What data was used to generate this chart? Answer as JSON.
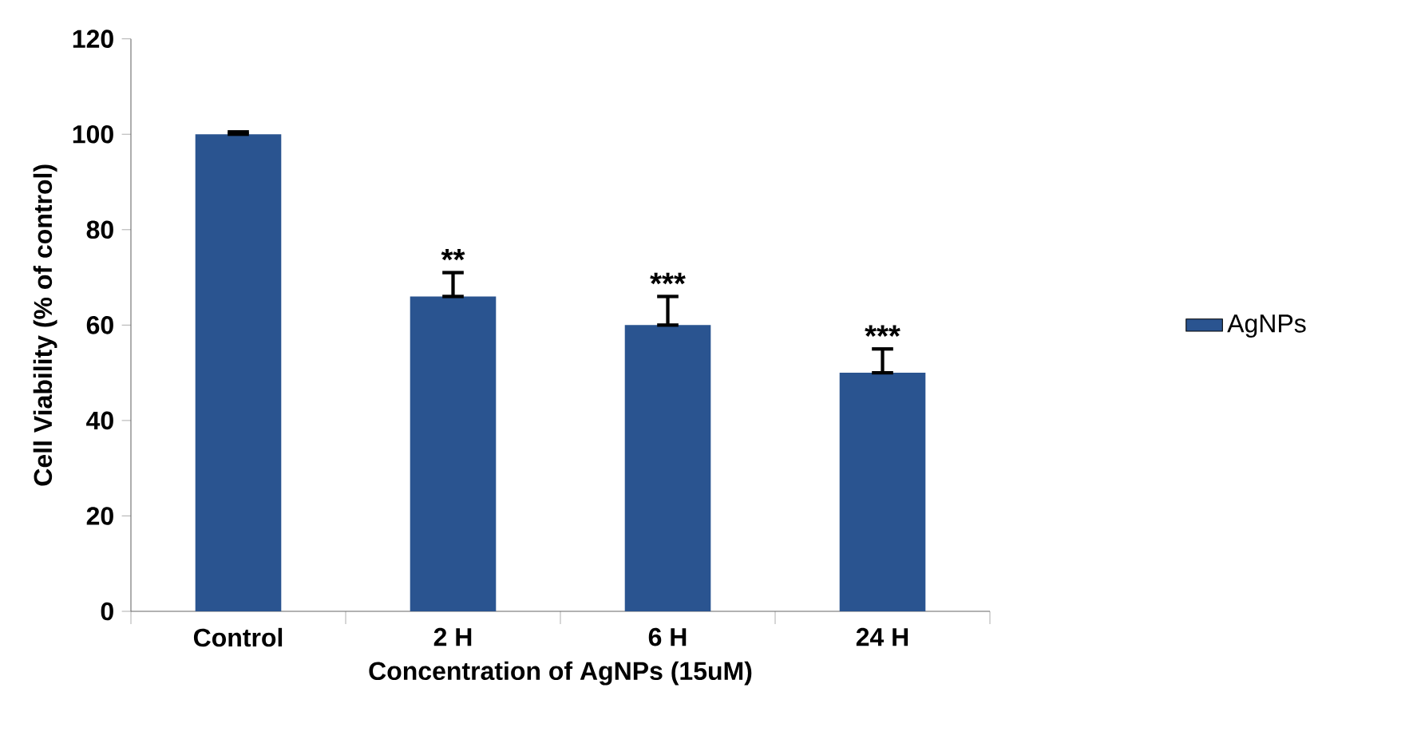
{
  "chart_data": {
    "type": "bar",
    "xlabel": "Concentration of AgNPs (15uM)",
    "ylabel": "Cell Viability (% of control)",
    "categories": [
      "Control",
      "2 H",
      "6 H",
      "24 H"
    ],
    "series": [
      {
        "name": "AgNPs",
        "color": "#2a5490",
        "values": [
          100,
          66,
          60,
          50
        ],
        "errors": [
          [
            100,
            100.5
          ],
          [
            66,
            71
          ],
          [
            60,
            66
          ],
          [
            50,
            55
          ]
        ]
      }
    ],
    "ylim": [
      0,
      120
    ],
    "yticks": [
      0,
      20,
      40,
      60,
      80,
      100,
      120
    ],
    "legend": "right",
    "annotations": [
      "**",
      "***",
      "***"
    ]
  }
}
